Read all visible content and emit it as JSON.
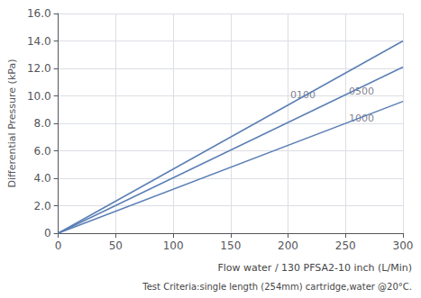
{
  "chart_data": {
    "type": "line",
    "xlabel": "Flow water / 130 PFSA2-10 inch (L/Min)",
    "xlabel2": "Test Criteria:single length (254mm) cartridge,water @20°C.",
    "ylabel": "Differential Pressure (kPa)",
    "x": [
      0,
      300
    ],
    "series": [
      {
        "color": "#5b7fb5",
        "values": [
          0,
          14.001
        ]
      },
      {
        "color": "#5b7fb5",
        "values": [
          0,
          12.099
        ]
      },
      {
        "color": "#5b7fb5",
        "values": [
          0,
          9.6
        ]
      }
    ],
    "annotations": [
      {
        "text": "0100",
        "x": 202,
        "y": 10.05
      },
      {
        "text": "0500",
        "x": 253,
        "y": 10.35
      },
      {
        "text": "1000",
        "x": 253,
        "y": 8.35
      }
    ],
    "xlim": [
      0,
      300
    ],
    "xticks": [
      0,
      50,
      100,
      150,
      200,
      250,
      300
    ],
    "ylim": [
      0,
      16
    ],
    "yticks": [
      0,
      {
        "value": 2,
        "label": "2.0"
      },
      {
        "value": 4,
        "label": "4.0"
      },
      {
        "value": 6,
        "label": "6.0"
      },
      {
        "value": 8,
        "label": "8.0"
      },
      {
        "value": 10,
        "label": "10.0"
      },
      {
        "value": 12,
        "label": "12.0"
      },
      {
        "value": 14,
        "label": "14.0"
      },
      {
        "value": 16,
        "label": "16.0"
      }
    ],
    "grid": true
  }
}
